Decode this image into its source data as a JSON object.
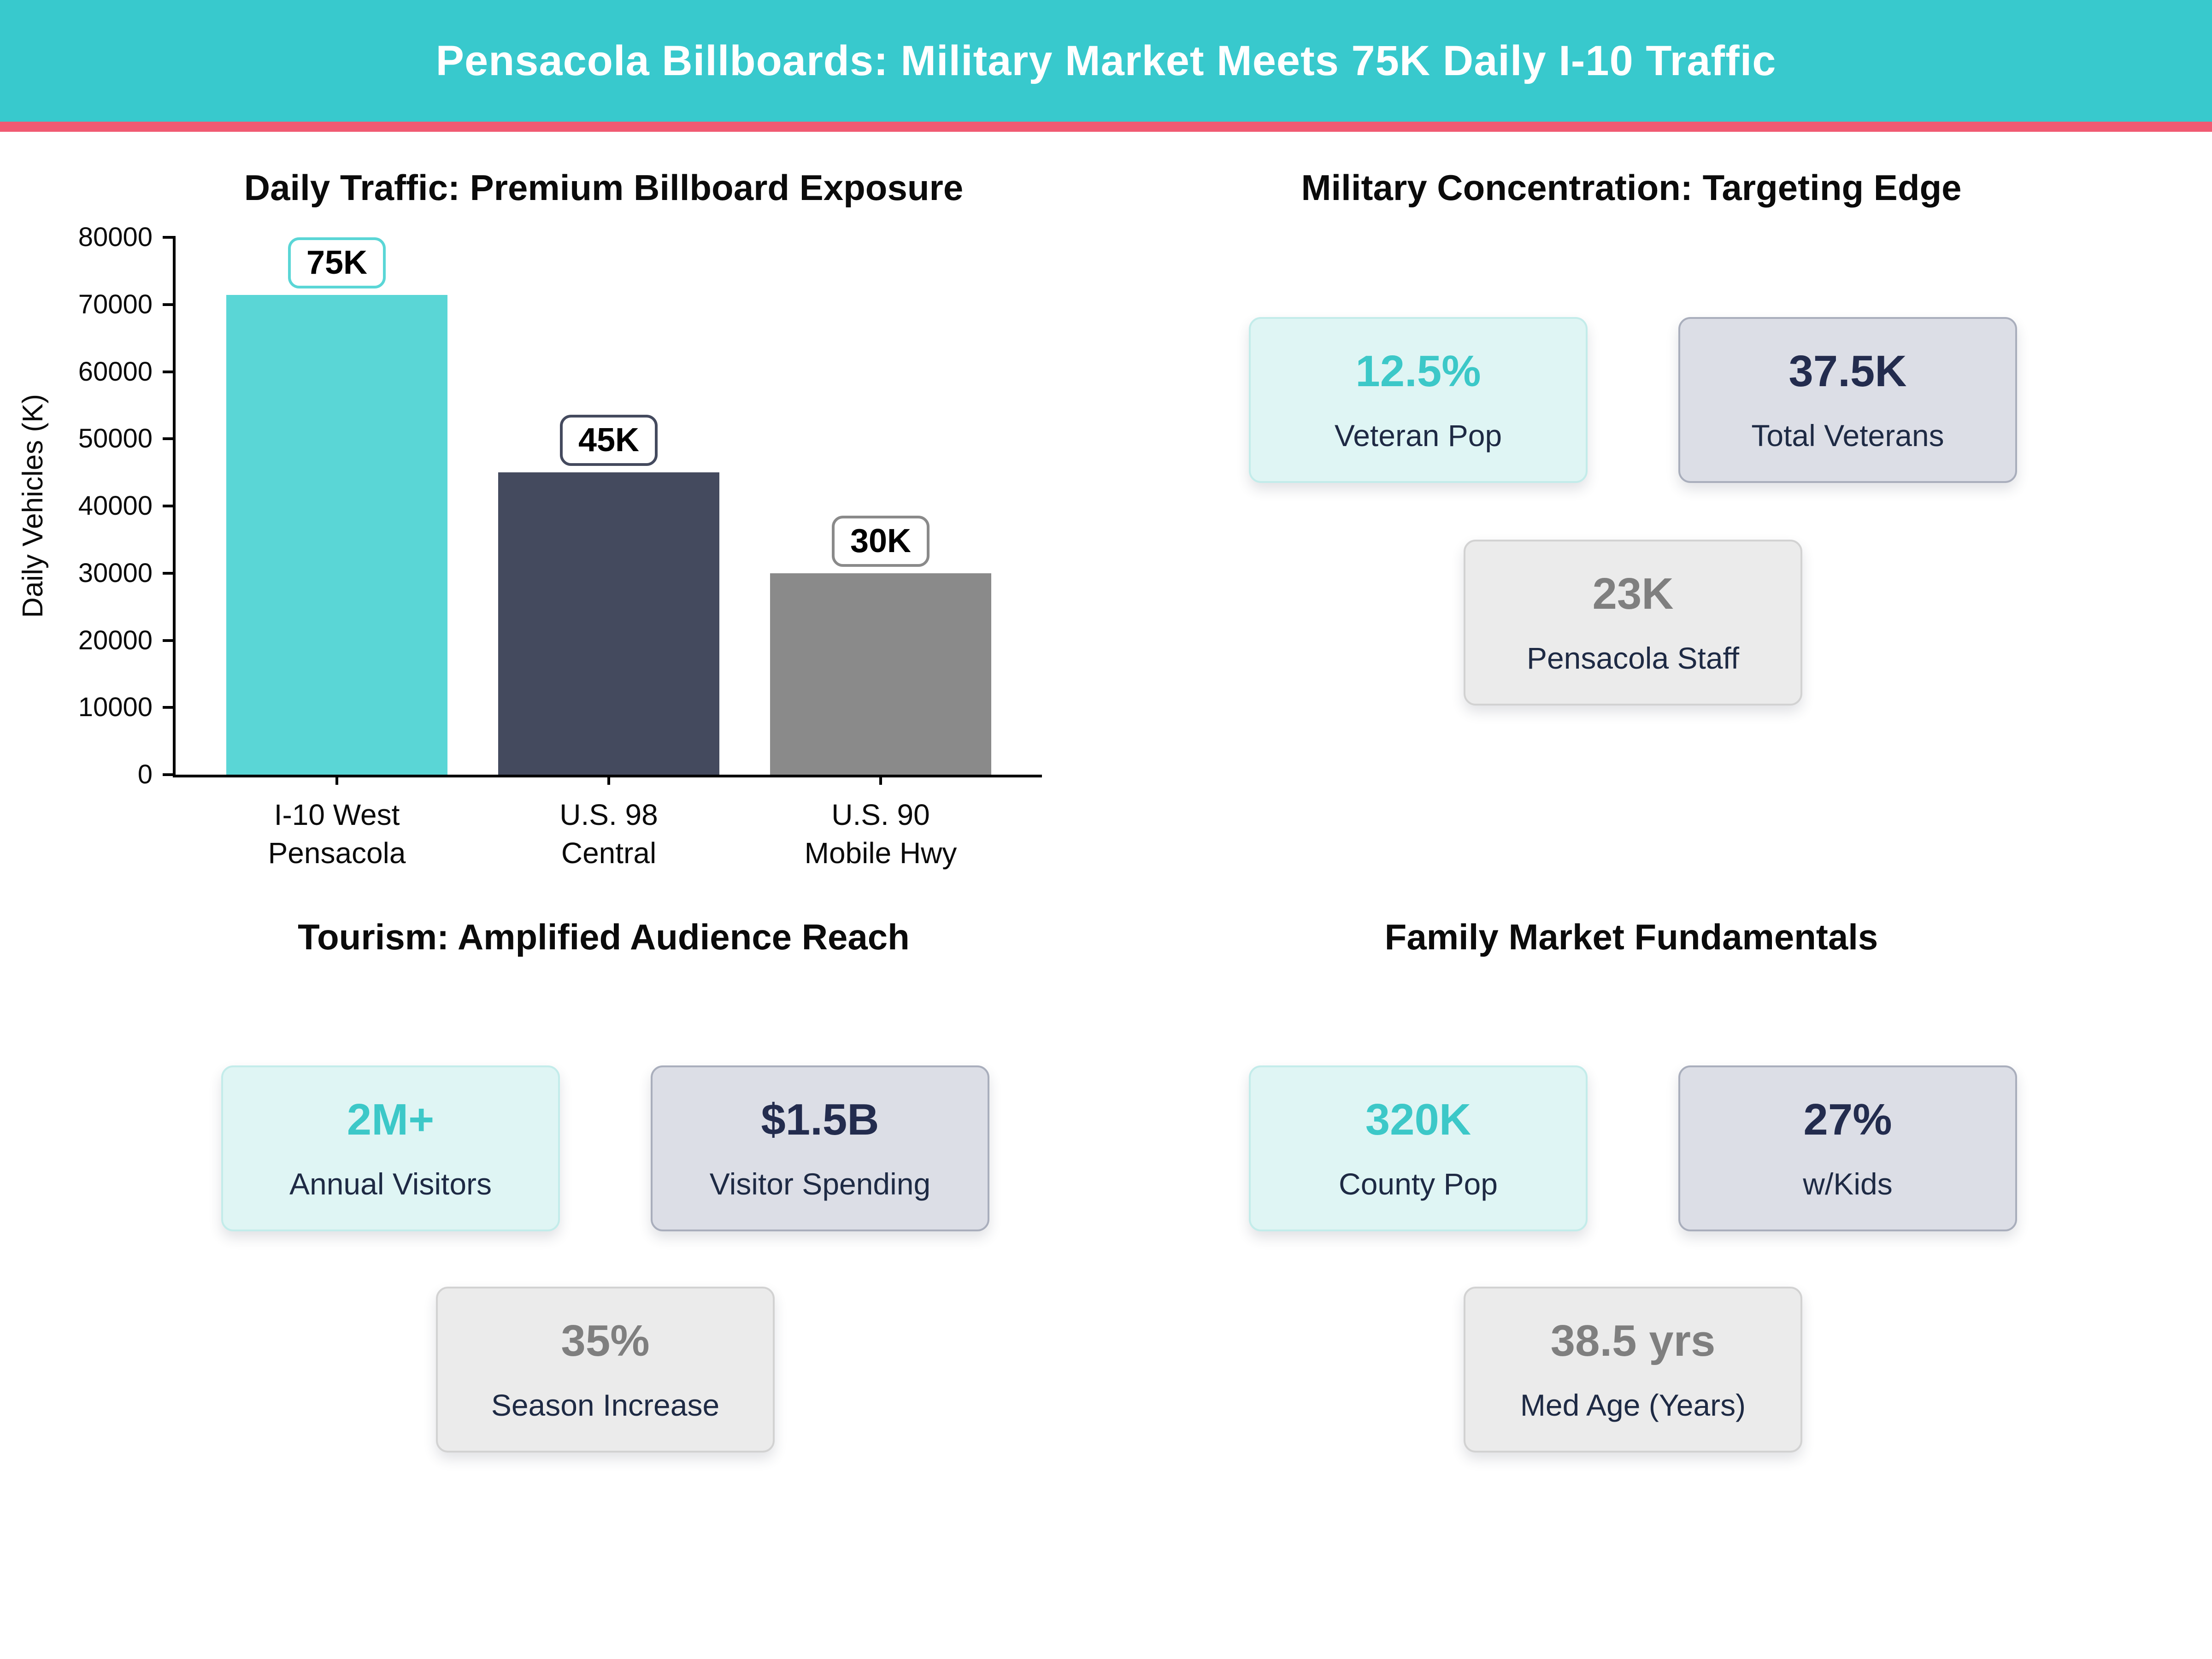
{
  "banner": {
    "title": "Pensacola Billboards: Military Market Meets 75K Daily I-10 Traffic",
    "bg_color": "#38c9cd",
    "accent_color": "#f05a72"
  },
  "panels": {
    "traffic": {
      "title": "Daily Traffic: Premium Billboard Exposure"
    },
    "military": {
      "title": "Military Concentration: Targeting Edge",
      "cards": [
        {
          "value": "12.5%",
          "label": "Veteran Pop",
          "variant": "teal"
        },
        {
          "value": "37.5K",
          "label": "Total Veterans",
          "variant": "navy"
        },
        {
          "value": "23K",
          "label": "Pensacola Staff",
          "variant": "gray"
        }
      ]
    },
    "tourism": {
      "title": "Tourism: Amplified Audience Reach",
      "cards": [
        {
          "value": "2M+",
          "label": "Annual Visitors",
          "variant": "teal"
        },
        {
          "value": "$1.5B",
          "label": "Visitor Spending",
          "variant": "navy"
        },
        {
          "value": "35%",
          "label": "Season Increase",
          "variant": "gray"
        }
      ]
    },
    "family": {
      "title": "Family Market Fundamentals",
      "cards": [
        {
          "value": "320K",
          "label": "County Pop",
          "variant": "teal"
        },
        {
          "value": "27%",
          "label": "w/Kids",
          "variant": "navy"
        },
        {
          "value": "38.5 yrs",
          "label": "Med Age (Years)",
          "variant": "gray"
        }
      ]
    }
  },
  "chart_data": {
    "type": "bar",
    "title": "Daily Traffic: Premium Billboard Exposure",
    "categories": [
      "I-10 West\nPensacola",
      "U.S. 98\nCentral",
      "U.S. 90\nMobile Hwy"
    ],
    "values": [
      75000,
      45000,
      30000
    ],
    "bar_labels": [
      "75K",
      "45K",
      "30K"
    ],
    "bar_colors": [
      "#5ad6d6",
      "#444a5e",
      "#8a8a8a"
    ],
    "xlabel": "",
    "ylabel": "Daily Vehicles (K)",
    "ylim": [
      0,
      80000
    ],
    "ytick_step": 10000,
    "yticks": [
      0,
      10000,
      20000,
      30000,
      40000,
      50000,
      60000,
      70000,
      80000
    ],
    "grid": false,
    "legend": "none"
  }
}
